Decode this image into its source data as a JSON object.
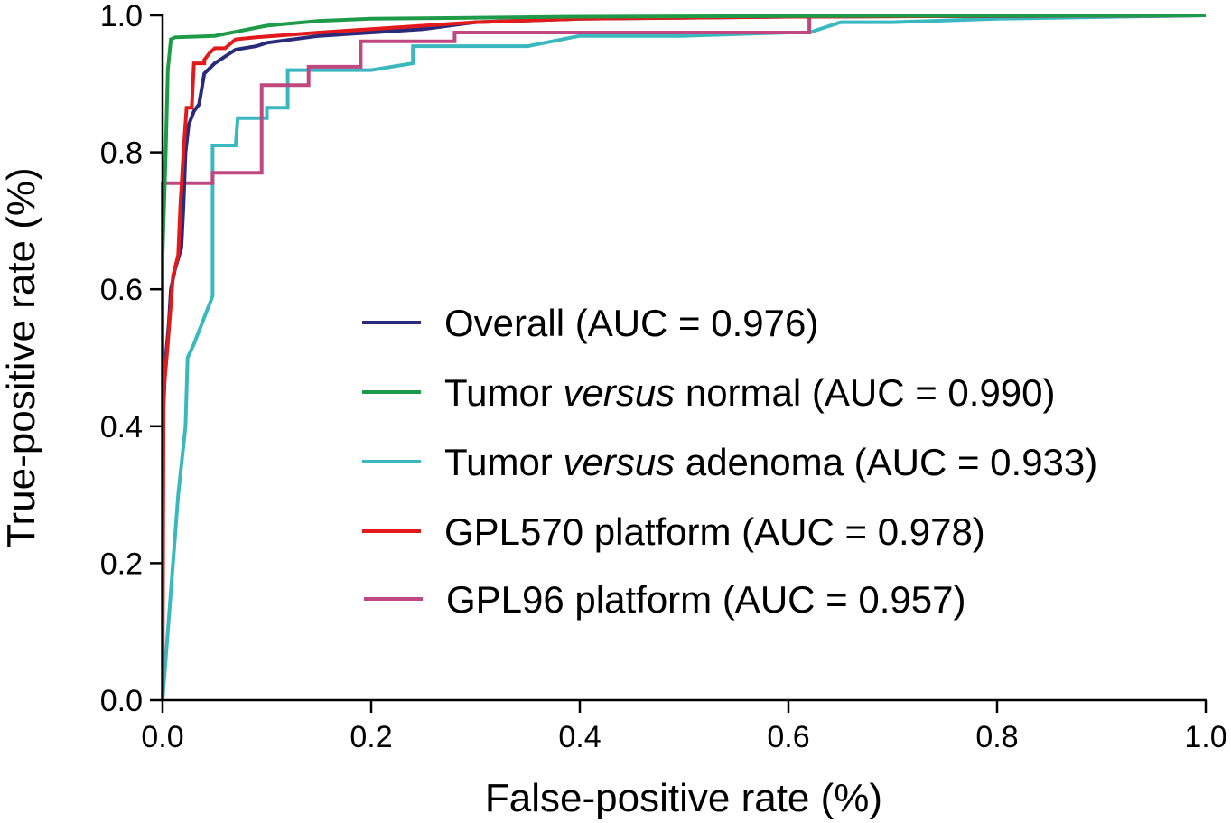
{
  "chart_data": {
    "type": "line",
    "xlabel": "False-positive rate (%)",
    "ylabel": "True-positive rate (%)",
    "xlim": [
      0,
      1
    ],
    "ylim": [
      0,
      1
    ],
    "xticks": [
      "0.0",
      "0.2",
      "0.4",
      "0.6",
      "0.8",
      "1.0"
    ],
    "yticks": [
      "0.0",
      "0.2",
      "0.4",
      "0.6",
      "0.8",
      "1.0"
    ],
    "grid": false,
    "legend_position": "center-right",
    "series": [
      {
        "label_parts": [
          "Overall (AUC = 0.976)"
        ],
        "color": "#2a2a7a",
        "points": [
          [
            0,
            0
          ],
          [
            0,
            0.4
          ],
          [
            0.003,
            0.5
          ],
          [
            0.006,
            0.55
          ],
          [
            0.008,
            0.6
          ],
          [
            0.012,
            0.63
          ],
          [
            0.018,
            0.66
          ],
          [
            0.02,
            0.72
          ],
          [
            0.022,
            0.8
          ],
          [
            0.025,
            0.84
          ],
          [
            0.03,
            0.86
          ],
          [
            0.035,
            0.87
          ],
          [
            0.04,
            0.915
          ],
          [
            0.05,
            0.93
          ],
          [
            0.06,
            0.94
          ],
          [
            0.07,
            0.95
          ],
          [
            0.09,
            0.955
          ],
          [
            0.1,
            0.96
          ],
          [
            0.15,
            0.97
          ],
          [
            0.2,
            0.975
          ],
          [
            0.25,
            0.98
          ],
          [
            0.3,
            0.99
          ],
          [
            0.4,
            0.995
          ],
          [
            0.6,
            0.998
          ],
          [
            1,
            1
          ]
        ]
      },
      {
        "label_parts": [
          "Tumor ",
          "versus",
          " normal (AUC = 0.990)"
        ],
        "color": "#1e9b48",
        "points": [
          [
            0,
            0
          ],
          [
            0,
            0.65
          ],
          [
            0.003,
            0.8
          ],
          [
            0.005,
            0.92
          ],
          [
            0.008,
            0.965
          ],
          [
            0.012,
            0.968
          ],
          [
            0.05,
            0.97
          ],
          [
            0.1,
            0.985
          ],
          [
            0.15,
            0.992
          ],
          [
            0.2,
            0.995
          ],
          [
            0.4,
            0.998
          ],
          [
            0.6,
            0.999
          ],
          [
            1,
            1
          ]
        ]
      },
      {
        "label_parts": [
          "Tumor ",
          "versus",
          " adenoma (AUC = 0.933)"
        ],
        "color": "#3ab8bf",
        "points": [
          [
            0,
            0
          ],
          [
            0.005,
            0.1
          ],
          [
            0.015,
            0.3
          ],
          [
            0.022,
            0.4
          ],
          [
            0.024,
            0.5
          ],
          [
            0.03,
            0.52
          ],
          [
            0.048,
            0.59
          ],
          [
            0.048,
            0.81
          ],
          [
            0.07,
            0.81
          ],
          [
            0.072,
            0.85
          ],
          [
            0.1,
            0.85
          ],
          [
            0.1,
            0.865
          ],
          [
            0.12,
            0.865
          ],
          [
            0.12,
            0.92
          ],
          [
            0.2,
            0.92
          ],
          [
            0.2,
            0.92
          ],
          [
            0.24,
            0.93
          ],
          [
            0.24,
            0.955
          ],
          [
            0.3,
            0.955
          ],
          [
            0.35,
            0.955
          ],
          [
            0.4,
            0.97
          ],
          [
            0.5,
            0.97
          ],
          [
            0.6,
            0.975
          ],
          [
            0.62,
            0.975
          ],
          [
            0.65,
            0.99
          ],
          [
            0.7,
            0.99
          ],
          [
            0.8,
            0.995
          ],
          [
            1,
            1
          ]
        ]
      },
      {
        "label_parts": [
          "GPL570 platform (AUC = 0.978)"
        ],
        "color": "#e31a1c",
        "points": [
          [
            0,
            0
          ],
          [
            0.001,
            0.45
          ],
          [
            0.005,
            0.52
          ],
          [
            0.01,
            0.62
          ],
          [
            0.015,
            0.65
          ],
          [
            0.017,
            0.72
          ],
          [
            0.02,
            0.8
          ],
          [
            0.023,
            0.865
          ],
          [
            0.028,
            0.865
          ],
          [
            0.03,
            0.93
          ],
          [
            0.04,
            0.93
          ],
          [
            0.04,
            0.935
          ],
          [
            0.045,
            0.945
          ],
          [
            0.05,
            0.952
          ],
          [
            0.06,
            0.952
          ],
          [
            0.07,
            0.965
          ],
          [
            0.09,
            0.968
          ],
          [
            0.15,
            0.975
          ],
          [
            0.2,
            0.98
          ],
          [
            0.3,
            0.99
          ],
          [
            0.4,
            0.995
          ],
          [
            0.6,
            0.998
          ],
          [
            1,
            1
          ]
        ]
      },
      {
        "label_parts": [
          "GPL96 platform (AUC = 0.957)"
        ],
        "color": "#c04880",
        "points": [
          [
            0,
            0
          ],
          [
            0,
            0.66
          ],
          [
            0,
            0.755
          ],
          [
            0.048,
            0.755
          ],
          [
            0.048,
            0.77
          ],
          [
            0.095,
            0.77
          ],
          [
            0.095,
            0.898
          ],
          [
            0.14,
            0.898
          ],
          [
            0.14,
            0.925
          ],
          [
            0.19,
            0.925
          ],
          [
            0.19,
            0.962
          ],
          [
            0.28,
            0.962
          ],
          [
            0.28,
            0.975
          ],
          [
            0.62,
            0.975
          ],
          [
            0.62,
            1
          ],
          [
            1,
            1
          ]
        ]
      }
    ]
  }
}
